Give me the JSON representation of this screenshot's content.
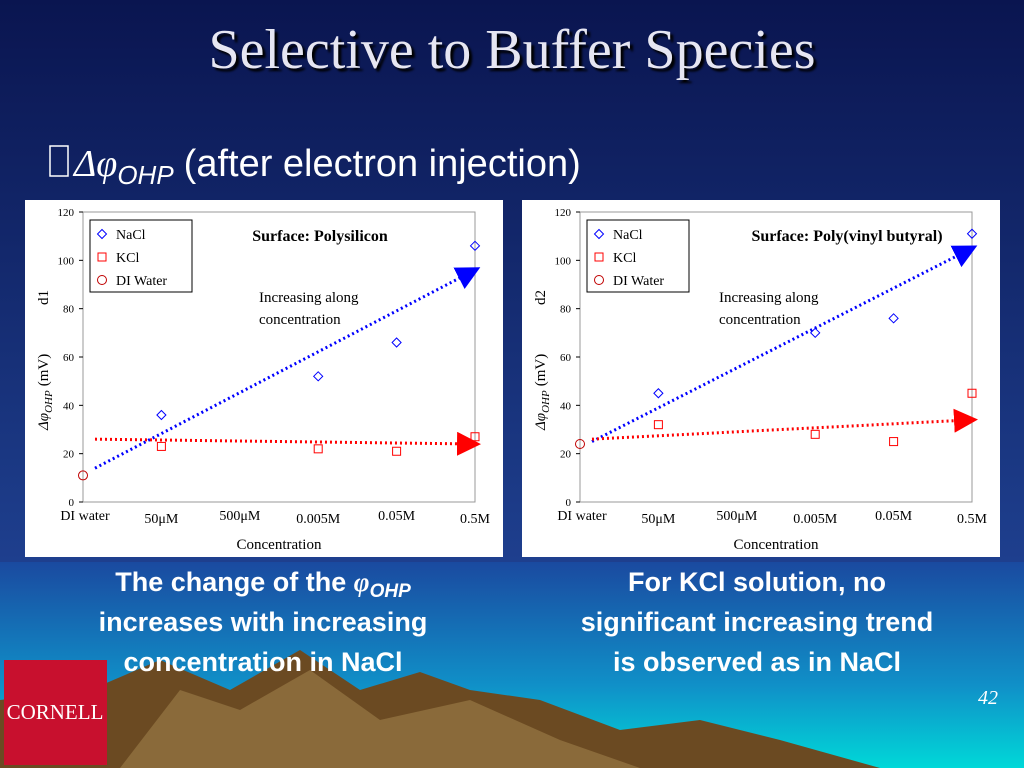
{
  "title": "Selective to Buffer Species",
  "bullet": {
    "symbol": "Δφ",
    "sub": "OHP",
    "text": "(after electron injection)"
  },
  "chart_data": [
    {
      "type": "scatter",
      "title": "Surface: Polysilicon",
      "annotation": [
        "Increasing along",
        "concentration"
      ],
      "panel_label": "d1",
      "ylabel": {
        "symbol": "Δφ",
        "sub": "OHP",
        "unit": "(mV)"
      },
      "xlabel": "Concentration",
      "categories": [
        "DI water",
        "50μM",
        "500μM",
        "0.005M",
        "0.05M",
        "0.5M"
      ],
      "series": [
        {
          "name": "NaCl",
          "color": "#0000ff",
          "marker": "diamond",
          "values": [
            null,
            36,
            null,
            52,
            66,
            106
          ]
        },
        {
          "name": "KCl",
          "color": "#ff0000",
          "marker": "square",
          "values": [
            null,
            23,
            null,
            22,
            21,
            27
          ]
        },
        {
          "name": "DI Water",
          "color": "#c00000",
          "marker": "circle",
          "values": [
            11,
            null,
            null,
            null,
            null,
            null
          ]
        }
      ],
      "trendlines": [
        {
          "color": "#0000ff",
          "values": [
            14,
            96
          ]
        },
        {
          "color": "#ff0000",
          "values": [
            26,
            24
          ]
        }
      ],
      "ylim": [
        0,
        120
      ],
      "yticks": [
        0,
        20,
        40,
        60,
        80,
        100,
        120
      ],
      "legend": "upper left"
    },
    {
      "type": "scatter",
      "title": "Surface: Poly(vinyl butyral)",
      "annotation": [
        "Increasing along",
        "concentration"
      ],
      "panel_label": "d2",
      "ylabel": {
        "symbol": "Δφ",
        "sub": "OHP",
        "unit": "(mV)"
      },
      "xlabel": "Concentration",
      "categories": [
        "DI water",
        "50μM",
        "500μM",
        "0.005M",
        "0.05M",
        "0.5M"
      ],
      "series": [
        {
          "name": "NaCl",
          "color": "#0000ff",
          "marker": "diamond",
          "values": [
            null,
            45,
            null,
            70,
            76,
            111
          ]
        },
        {
          "name": "KCl",
          "color": "#ff0000",
          "marker": "square",
          "values": [
            null,
            32,
            null,
            28,
            25,
            45
          ]
        },
        {
          "name": "DI Water",
          "color": "#c00000",
          "marker": "circle",
          "values": [
            24,
            null,
            null,
            null,
            null,
            null
          ]
        }
      ],
      "trendlines": [
        {
          "color": "#0000ff",
          "values": [
            25,
            105
          ]
        },
        {
          "color": "#ff0000",
          "values": [
            26,
            34
          ]
        }
      ],
      "ylim": [
        0,
        120
      ],
      "yticks": [
        0,
        20,
        40,
        60,
        80,
        100,
        120
      ],
      "legend": "upper left"
    }
  ],
  "captions": [
    {
      "lead": "The change of the ",
      "symbol": "φ",
      "sub": "OHP",
      "lines": [
        "increases with increasing",
        "concentration in NaCl"
      ]
    },
    {
      "lines": [
        "For KCl solution, no",
        "significant increasing trend",
        "is observed as in NaCl"
      ]
    }
  ],
  "logo": "CORNELL",
  "page_number": "42"
}
